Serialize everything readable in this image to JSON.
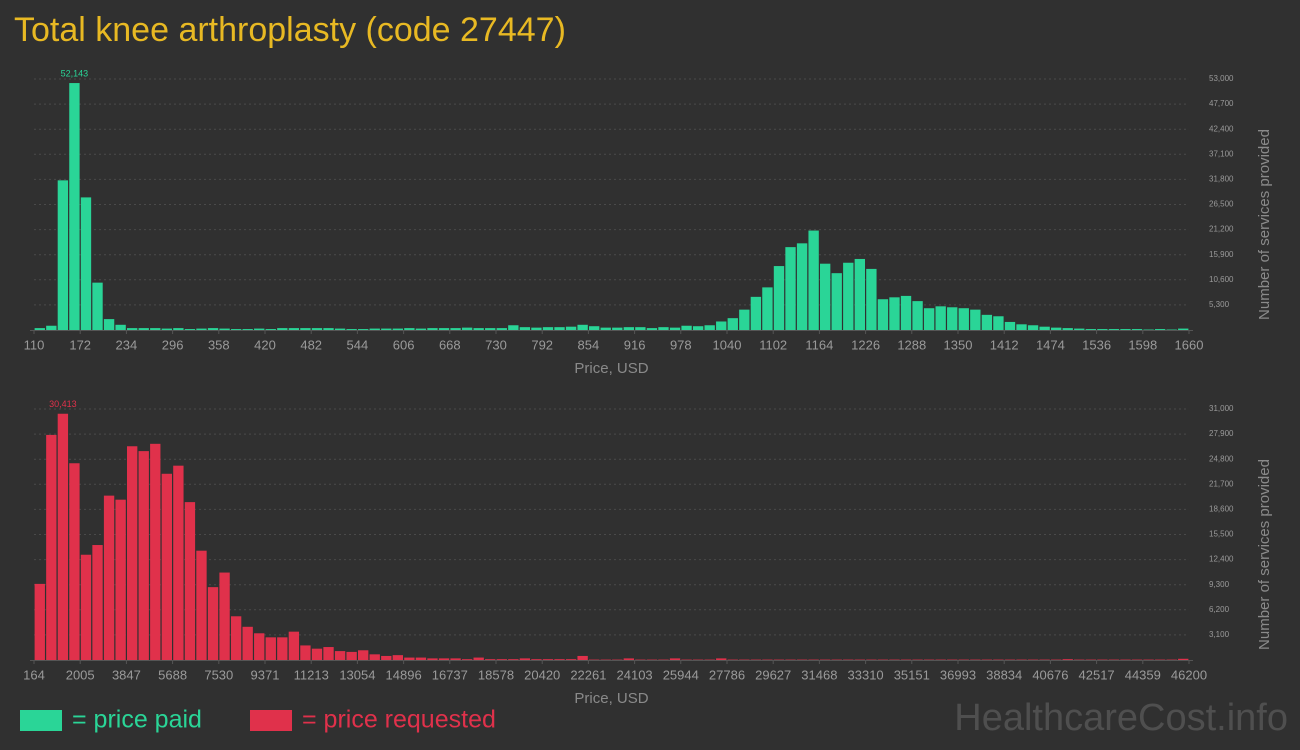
{
  "title": "Total knee arthroplasty (code 27447)",
  "watermark": "HealthcareCost.info",
  "chart_data": [
    {
      "type": "histogram",
      "x_label": "Price, USD",
      "y_label": "Number of services provided",
      "bins": [
        110,
        125.5,
        141,
        156.5,
        172,
        187.5,
        203,
        218.5,
        234,
        249.5,
        265,
        280.5,
        296,
        311.5,
        327,
        342.5,
        358,
        373.5,
        389,
        404.5,
        420,
        435.5,
        451,
        466.5,
        482,
        497.5,
        513,
        528.5,
        544,
        559.5,
        575,
        590.5,
        606,
        621.5,
        637,
        652.5,
        668,
        683.5,
        699,
        714.5,
        730,
        745.5,
        761,
        776.5,
        792,
        807.5,
        823,
        838.5,
        854,
        869.5,
        885,
        900.5,
        916,
        931.5,
        947,
        962.5,
        978,
        993.5,
        1009,
        1024.5,
        1040,
        1055.5,
        1071,
        1086.5,
        1102,
        1117.5,
        1133,
        1148.5,
        1164,
        1179.5,
        1195,
        1210.5,
        1226,
        1241.5,
        1257,
        1272.5,
        1288,
        1303.5,
        1319,
        1334.5,
        1350,
        1365.5,
        1381,
        1396.5,
        1412,
        1427.5,
        1443,
        1458.5,
        1474,
        1489.5,
        1505,
        1520.5,
        1536,
        1551.5,
        1567,
        1582.5,
        1598,
        1613.5,
        1629,
        1644.5,
        1660
      ],
      "series": [
        {
          "name": "= price paid",
          "color": "#2ad597",
          "values": [
            400,
            900,
            31600,
            52143,
            28000,
            10000,
            2300,
            1100,
            400,
            400,
            400,
            300,
            400,
            200,
            300,
            400,
            300,
            200,
            200,
            300,
            200,
            400,
            400,
            400,
            400,
            400,
            300,
            200,
            200,
            300,
            300,
            300,
            400,
            300,
            400,
            400,
            400,
            500,
            400,
            400,
            400,
            1000,
            600,
            500,
            600,
            600,
            700,
            1100,
            800,
            500,
            500,
            600,
            600,
            400,
            600,
            500,
            900,
            800,
            1000,
            1800,
            2500,
            4300,
            7000,
            9000,
            13500,
            17500,
            18300,
            21000,
            14000,
            12000,
            14200,
            15000,
            12900,
            6500,
            6900,
            7200,
            6100,
            4600,
            5000,
            4800,
            4600,
            4300,
            3200,
            2900,
            1700,
            1200,
            1000,
            700,
            500,
            400,
            300,
            200,
            200,
            200,
            200,
            200,
            100,
            200,
            100,
            300
          ],
          "value_labels": [
            null,
            null,
            null,
            "52,143",
            null,
            null,
            null,
            null,
            null,
            null,
            null,
            null,
            null,
            null,
            null,
            null,
            null,
            null,
            null,
            null,
            null,
            null,
            null,
            null,
            null,
            null,
            null,
            null,
            null,
            null,
            null,
            null,
            null,
            null,
            null,
            null,
            null,
            null,
            null,
            null,
            null,
            null,
            null,
            null,
            null,
            null,
            null,
            null,
            null,
            null,
            null,
            null,
            null,
            null,
            null,
            null,
            null,
            null,
            null,
            null,
            null,
            null,
            null,
            null,
            null,
            null,
            null,
            null,
            null,
            null,
            null,
            null,
            null,
            null,
            null,
            null,
            null,
            null,
            null,
            null,
            null,
            null,
            null,
            null,
            null,
            null,
            null,
            null,
            null,
            null,
            null,
            null,
            null,
            null,
            null,
            null,
            null,
            null,
            null,
            null
          ]
        }
      ],
      "xlim": [
        110,
        1660
      ],
      "xticks": [
        110,
        172,
        234,
        296,
        358,
        420,
        482,
        544,
        606,
        668,
        730,
        792,
        854,
        916,
        978,
        1040,
        1102,
        1164,
        1226,
        1288,
        1350,
        1412,
        1474,
        1536,
        1598,
        1660
      ],
      "ylim": [
        0,
        53000
      ],
      "yticks": [
        {
          "value": 5300,
          "label": "5,300"
        },
        {
          "value": 10600,
          "label": "10,600"
        },
        {
          "value": 15900,
          "label": "15,900"
        },
        {
          "value": 21200,
          "label": "21,200"
        },
        {
          "value": 26500,
          "label": "26,500"
        },
        {
          "value": 31800,
          "label": "31,800"
        },
        {
          "value": 37100,
          "label": "37,100"
        },
        {
          "value": 42400,
          "label": "42,400"
        },
        {
          "value": 47700,
          "label": "47,700"
        },
        {
          "value": 53000,
          "label": "53,000"
        }
      ],
      "grid": true
    },
    {
      "type": "histogram",
      "x_label": "Price, USD",
      "y_label": "Number of services provided",
      "bins": [
        164,
        624.36,
        1084.72,
        1545.08,
        2005.44,
        2465.8,
        2926.16,
        3386.52,
        3846.88,
        4307.24,
        4767.6,
        5227.96,
        5688.32,
        6148.68,
        6609.04,
        7069.4,
        7529.76,
        7990.12,
        8450.48,
        8910.84,
        9371.2,
        9831.56,
        10291.92,
        10752.28,
        11212.64,
        11673,
        12133.36,
        12593.72,
        13054.08,
        13514.44,
        13974.8,
        14435.16,
        14895.52,
        15355.88,
        15816.24,
        16276.6,
        16736.96,
        17197.32,
        17657.68,
        18118.04,
        18578.4,
        19038.76,
        19499.12,
        19959.48,
        20419.84,
        20880.2,
        21340.56,
        21800.92,
        22261.28,
        22721.64,
        23182,
        23642.36,
        24102.72,
        24563.08,
        25023.44,
        25483.8,
        25944.16,
        26404.52,
        26864.88,
        27325.24,
        27785.6,
        28245.96,
        28706.32,
        29166.68,
        29627.04,
        30087.4,
        30547.76,
        31008.12,
        31468.48,
        31928.84,
        32389.2,
        32849.56,
        33309.92,
        33770.28,
        34230.64,
        34691,
        35151.36,
        35611.72,
        36072.08,
        36532.44,
        36992.8,
        37453.16,
        37913.52,
        38373.88,
        38834.24,
        39294.6,
        39754.96,
        40215.32,
        40675.68,
        41136.04,
        41596.4,
        42056.76,
        42517.12,
        42977.48,
        43437.84,
        43898.2,
        44358.56,
        44818.92,
        45279.28,
        45739.64,
        46200
      ],
      "series": [
        {
          "name": "= price requested",
          "color": "#e0314b",
          "values": [
            9400,
            27800,
            30413,
            24300,
            13000,
            14200,
            20300,
            19800,
            26400,
            25800,
            26700,
            23000,
            24000,
            19500,
            13500,
            9000,
            10800,
            5400,
            4100,
            3300,
            2800,
            2800,
            3500,
            1800,
            1400,
            1600,
            1100,
            1000,
            1200,
            700,
            500,
            600,
            300,
            300,
            200,
            200,
            200,
            100,
            300,
            100,
            100,
            100,
            200,
            100,
            100,
            100,
            100,
            500,
            50,
            50,
            50,
            200,
            50,
            50,
            50,
            200,
            50,
            50,
            50,
            200,
            50,
            50,
            50,
            50,
            50,
            50,
            50,
            50,
            50,
            50,
            50,
            50,
            50,
            50,
            50,
            50,
            50,
            50,
            50,
            50,
            50,
            50,
            50,
            50,
            50,
            50,
            50,
            50,
            50,
            100,
            50,
            50,
            50,
            50,
            50,
            50,
            50,
            50,
            50,
            150
          ],
          "value_labels": [
            null,
            null,
            "30,413",
            null,
            null,
            null,
            null,
            null,
            null,
            null,
            null,
            null,
            null,
            null,
            null,
            null,
            null,
            null,
            null,
            null,
            null,
            null,
            null,
            null,
            null,
            null,
            null,
            null,
            null,
            null,
            null,
            null,
            null,
            null,
            null,
            null,
            null,
            null,
            null,
            null,
            null,
            null,
            null,
            null,
            null,
            null,
            null,
            null,
            null,
            null,
            null,
            null,
            null,
            null,
            null,
            null,
            null,
            null,
            null,
            null,
            null,
            null,
            null,
            null,
            null,
            null,
            null,
            null,
            null,
            null,
            null,
            null,
            null,
            null,
            null,
            null,
            null,
            null,
            null,
            null,
            null,
            null,
            null,
            null,
            null,
            null,
            null,
            null,
            null,
            null,
            null,
            null,
            null,
            null,
            null,
            null,
            null,
            null,
            null,
            null
          ]
        }
      ],
      "xlim": [
        164,
        46200
      ],
      "xticks": [
        164,
        2005,
        3847,
        5688,
        7530,
        9371,
        11213,
        13054,
        14896,
        16737,
        18578,
        20420,
        22261,
        24103,
        25944,
        27786,
        29627,
        31468,
        33310,
        35151,
        36993,
        38834,
        40676,
        42517,
        44359,
        46200
      ],
      "ylim": [
        0,
        31000
      ],
      "yticks": [
        {
          "value": 3100,
          "label": "3,100"
        },
        {
          "value": 6200,
          "label": "6,200"
        },
        {
          "value": 9300,
          "label": "9,300"
        },
        {
          "value": 12400,
          "label": "12,400"
        },
        {
          "value": 15500,
          "label": "15,500"
        },
        {
          "value": 18600,
          "label": "18,600"
        },
        {
          "value": 21700,
          "label": "21,700"
        },
        {
          "value": 24800,
          "label": "24,800"
        },
        {
          "value": 27900,
          "label": "27,900"
        },
        {
          "value": 31000,
          "label": "31,000"
        }
      ],
      "grid": true
    }
  ]
}
